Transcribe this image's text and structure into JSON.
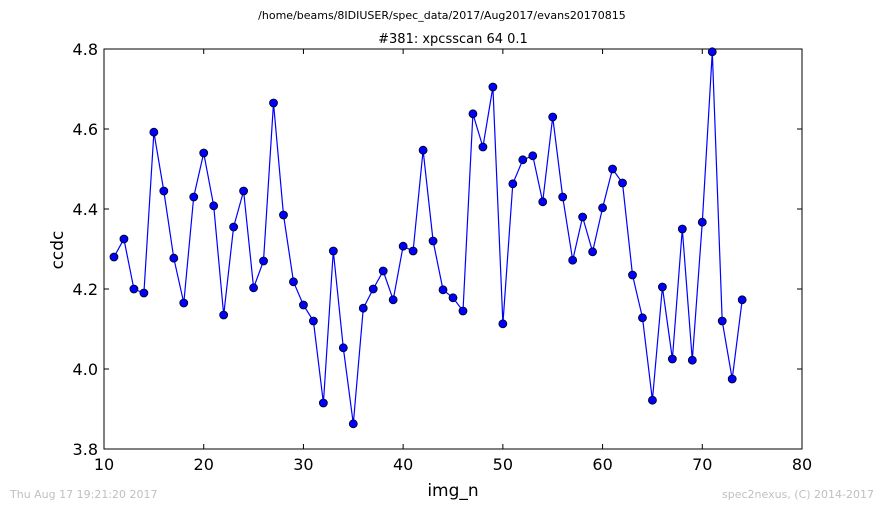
{
  "header": {
    "path": "/home/beams/8IDIUSER/spec_data/2017/Aug2017/evans20170815"
  },
  "footer": {
    "timestamp": "Thu Aug 17 19:21:20 2017",
    "credit": "spec2nexus, (C) 2014-2017"
  },
  "colors": {
    "series": "#0000ff",
    "marker_edge": "#000000",
    "footer_text": "#c0c0c0"
  },
  "chart_data": {
    "type": "line",
    "title": "#381: xpcsscan 64 0.1",
    "xlabel": "img_n",
    "ylabel": "ccdc",
    "xlim": [
      10,
      80
    ],
    "ylim": [
      3.8,
      4.8
    ],
    "xticks": [
      10,
      20,
      30,
      40,
      50,
      60,
      70,
      80
    ],
    "yticks": [
      3.8,
      4.0,
      4.2,
      4.4,
      4.6,
      4.8
    ],
    "grid": false,
    "markers": "circle",
    "series": [
      {
        "x": [
          11,
          12,
          13,
          14,
          15,
          16,
          17,
          18,
          19,
          20,
          21,
          22,
          23,
          24,
          25,
          26,
          27,
          28,
          29,
          30,
          31,
          32,
          33,
          34,
          35,
          36,
          37,
          38,
          39,
          40,
          41,
          42,
          43,
          44,
          45,
          46,
          47,
          48,
          49,
          50,
          51,
          52,
          53,
          54,
          55,
          56,
          57,
          58,
          59,
          60,
          61,
          62,
          63,
          64,
          65,
          66,
          67,
          68,
          69,
          70,
          71,
          72,
          73,
          74
        ],
        "values": [
          4.28,
          4.325,
          4.2,
          4.19,
          4.592,
          4.445,
          4.277,
          4.165,
          4.43,
          4.54,
          4.408,
          4.135,
          4.355,
          4.445,
          4.203,
          4.27,
          4.665,
          4.385,
          4.218,
          4.16,
          4.12,
          3.915,
          4.295,
          4.053,
          3.863,
          4.152,
          4.2,
          4.245,
          4.173,
          4.307,
          4.295,
          4.547,
          4.32,
          4.198,
          4.178,
          4.145,
          4.638,
          4.555,
          4.705,
          4.113,
          4.463,
          4.523,
          4.533,
          4.418,
          4.63,
          4.43,
          4.272,
          4.38,
          4.293,
          4.403,
          4.5,
          4.465,
          4.235,
          4.128,
          3.922,
          4.205,
          4.025,
          4.35,
          4.022,
          4.367,
          4.793,
          4.12,
          3.975,
          4.173
        ]
      }
    ]
  }
}
